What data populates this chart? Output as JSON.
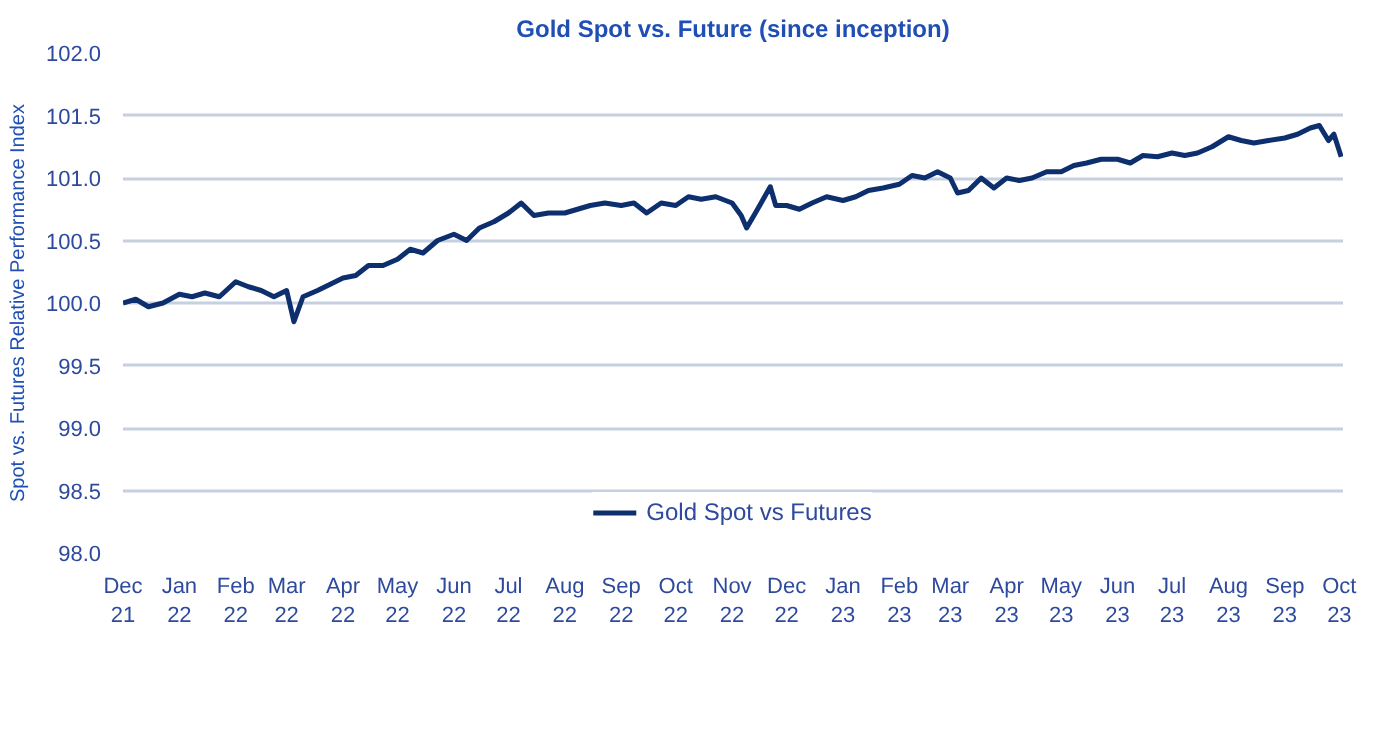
{
  "chart_data": {
    "type": "line",
    "title": "Gold Spot vs. Future (since inception)",
    "ylabel": "Spot vs. Futures Relative Performance Index",
    "x": [
      "2021-12-01",
      "2021-12-08",
      "2021-12-15",
      "2021-12-23",
      "2022-01-01",
      "2022-01-08",
      "2022-01-15",
      "2022-01-23",
      "2022-02-01",
      "2022-02-08",
      "2022-02-15",
      "2022-02-22",
      "2022-03-01",
      "2022-03-05",
      "2022-03-10",
      "2022-03-18",
      "2022-03-25",
      "2022-04-01",
      "2022-04-08",
      "2022-04-15",
      "2022-04-23",
      "2022-05-01",
      "2022-05-08",
      "2022-05-15",
      "2022-05-23",
      "2022-06-01",
      "2022-06-08",
      "2022-06-15",
      "2022-06-23",
      "2022-07-01",
      "2022-07-08",
      "2022-07-15",
      "2022-07-23",
      "2022-08-01",
      "2022-08-08",
      "2022-08-15",
      "2022-08-23",
      "2022-09-01",
      "2022-09-08",
      "2022-09-15",
      "2022-09-23",
      "2022-10-01",
      "2022-10-08",
      "2022-10-15",
      "2022-10-23",
      "2022-11-01",
      "2022-11-06",
      "2022-11-09",
      "2022-11-15",
      "2022-11-22",
      "2022-11-25",
      "2022-12-01",
      "2022-12-08",
      "2022-12-15",
      "2022-12-23",
      "2023-01-01",
      "2023-01-08",
      "2023-01-15",
      "2023-01-23",
      "2023-02-01",
      "2023-02-08",
      "2023-02-15",
      "2023-02-22",
      "2023-03-01",
      "2023-03-05",
      "2023-03-11",
      "2023-03-18",
      "2023-03-25",
      "2023-04-01",
      "2023-04-08",
      "2023-04-15",
      "2023-04-23",
      "2023-05-01",
      "2023-05-08",
      "2023-05-15",
      "2023-05-23",
      "2023-06-01",
      "2023-06-08",
      "2023-06-15",
      "2023-06-23",
      "2023-07-01",
      "2023-07-08",
      "2023-07-15",
      "2023-07-23",
      "2023-08-01",
      "2023-08-08",
      "2023-08-15",
      "2023-08-23",
      "2023-09-01",
      "2023-09-08",
      "2023-09-15",
      "2023-09-20",
      "2023-09-25",
      "2023-09-28",
      "2023-10-02"
    ],
    "series": [
      {
        "name": "Gold Spot vs Futures",
        "color": "#0d2f6e",
        "values": [
          100.0,
          100.03,
          99.97,
          100.0,
          100.07,
          100.05,
          100.08,
          100.05,
          100.17,
          100.13,
          100.1,
          100.05,
          100.1,
          99.85,
          100.05,
          100.1,
          100.15,
          100.2,
          100.22,
          100.3,
          100.3,
          100.35,
          100.43,
          100.4,
          100.5,
          100.55,
          100.5,
          100.6,
          100.65,
          100.72,
          100.8,
          100.7,
          100.72,
          100.72,
          100.75,
          100.78,
          100.8,
          100.78,
          100.8,
          100.72,
          100.8,
          100.78,
          100.85,
          100.83,
          100.85,
          100.8,
          100.7,
          100.6,
          100.75,
          100.93,
          100.78,
          100.78,
          100.75,
          100.8,
          100.85,
          100.82,
          100.85,
          100.9,
          100.92,
          100.95,
          101.02,
          101.0,
          101.05,
          101.0,
          100.88,
          100.9,
          101.0,
          100.92,
          101.0,
          100.98,
          101.0,
          101.05,
          101.05,
          101.1,
          101.12,
          101.15,
          101.15,
          101.12,
          101.18,
          101.17,
          101.2,
          101.18,
          101.2,
          101.25,
          101.33,
          101.3,
          101.28,
          101.3,
          101.32,
          101.35,
          101.4,
          101.42,
          101.3,
          101.35,
          101.17
        ]
      }
    ],
    "xlim": [
      "2021-12-01",
      "2023-10-03"
    ],
    "xticks": [
      {
        "value": "2021-12-01",
        "label": "Dec\n21"
      },
      {
        "value": "2022-01-01",
        "label": "Jan\n22"
      },
      {
        "value": "2022-02-01",
        "label": "Feb\n22"
      },
      {
        "value": "2022-03-01",
        "label": "Mar\n22"
      },
      {
        "value": "2022-04-01",
        "label": "Apr\n22"
      },
      {
        "value": "2022-05-01",
        "label": "May\n22"
      },
      {
        "value": "2022-06-01",
        "label": "Jun\n22"
      },
      {
        "value": "2022-07-01",
        "label": "Jul\n22"
      },
      {
        "value": "2022-08-01",
        "label": "Aug\n22"
      },
      {
        "value": "2022-09-01",
        "label": "Sep\n22"
      },
      {
        "value": "2022-10-01",
        "label": "Oct\n22"
      },
      {
        "value": "2022-11-01",
        "label": "Nov\n22"
      },
      {
        "value": "2022-12-01",
        "label": "Dec\n22"
      },
      {
        "value": "2023-01-01",
        "label": "Jan\n23"
      },
      {
        "value": "2023-02-01",
        "label": "Feb\n23"
      },
      {
        "value": "2023-03-01",
        "label": "Mar\n23"
      },
      {
        "value": "2023-04-01",
        "label": "Apr\n23"
      },
      {
        "value": "2023-05-01",
        "label": "May\n23"
      },
      {
        "value": "2023-06-01",
        "label": "Jun\n23"
      },
      {
        "value": "2023-07-01",
        "label": "Jul\n23"
      },
      {
        "value": "2023-08-01",
        "label": "Aug\n23"
      },
      {
        "value": "2023-09-01",
        "label": "Sep\n23"
      },
      {
        "value": "2023-10-01",
        "label": "Oct\n23"
      }
    ],
    "ylim": [
      98.0,
      102.0
    ],
    "yticks": [
      {
        "value": 98,
        "label": "98.0"
      },
      {
        "value": 98.5,
        "label": "98.5"
      },
      {
        "value": 99,
        "label": "99.0"
      },
      {
        "value": 99.5,
        "label": "99.5"
      },
      {
        "value": 100,
        "label": "100.0"
      },
      {
        "value": 100.5,
        "label": "100.5"
      },
      {
        "value": 101,
        "label": "101.0"
      },
      {
        "value": 101.5,
        "label": "101.5"
      },
      {
        "value": 102,
        "label": "102.0"
      }
    ],
    "grid": "y",
    "legend": "bottom",
    "line_style": "solid",
    "marker": "none"
  }
}
